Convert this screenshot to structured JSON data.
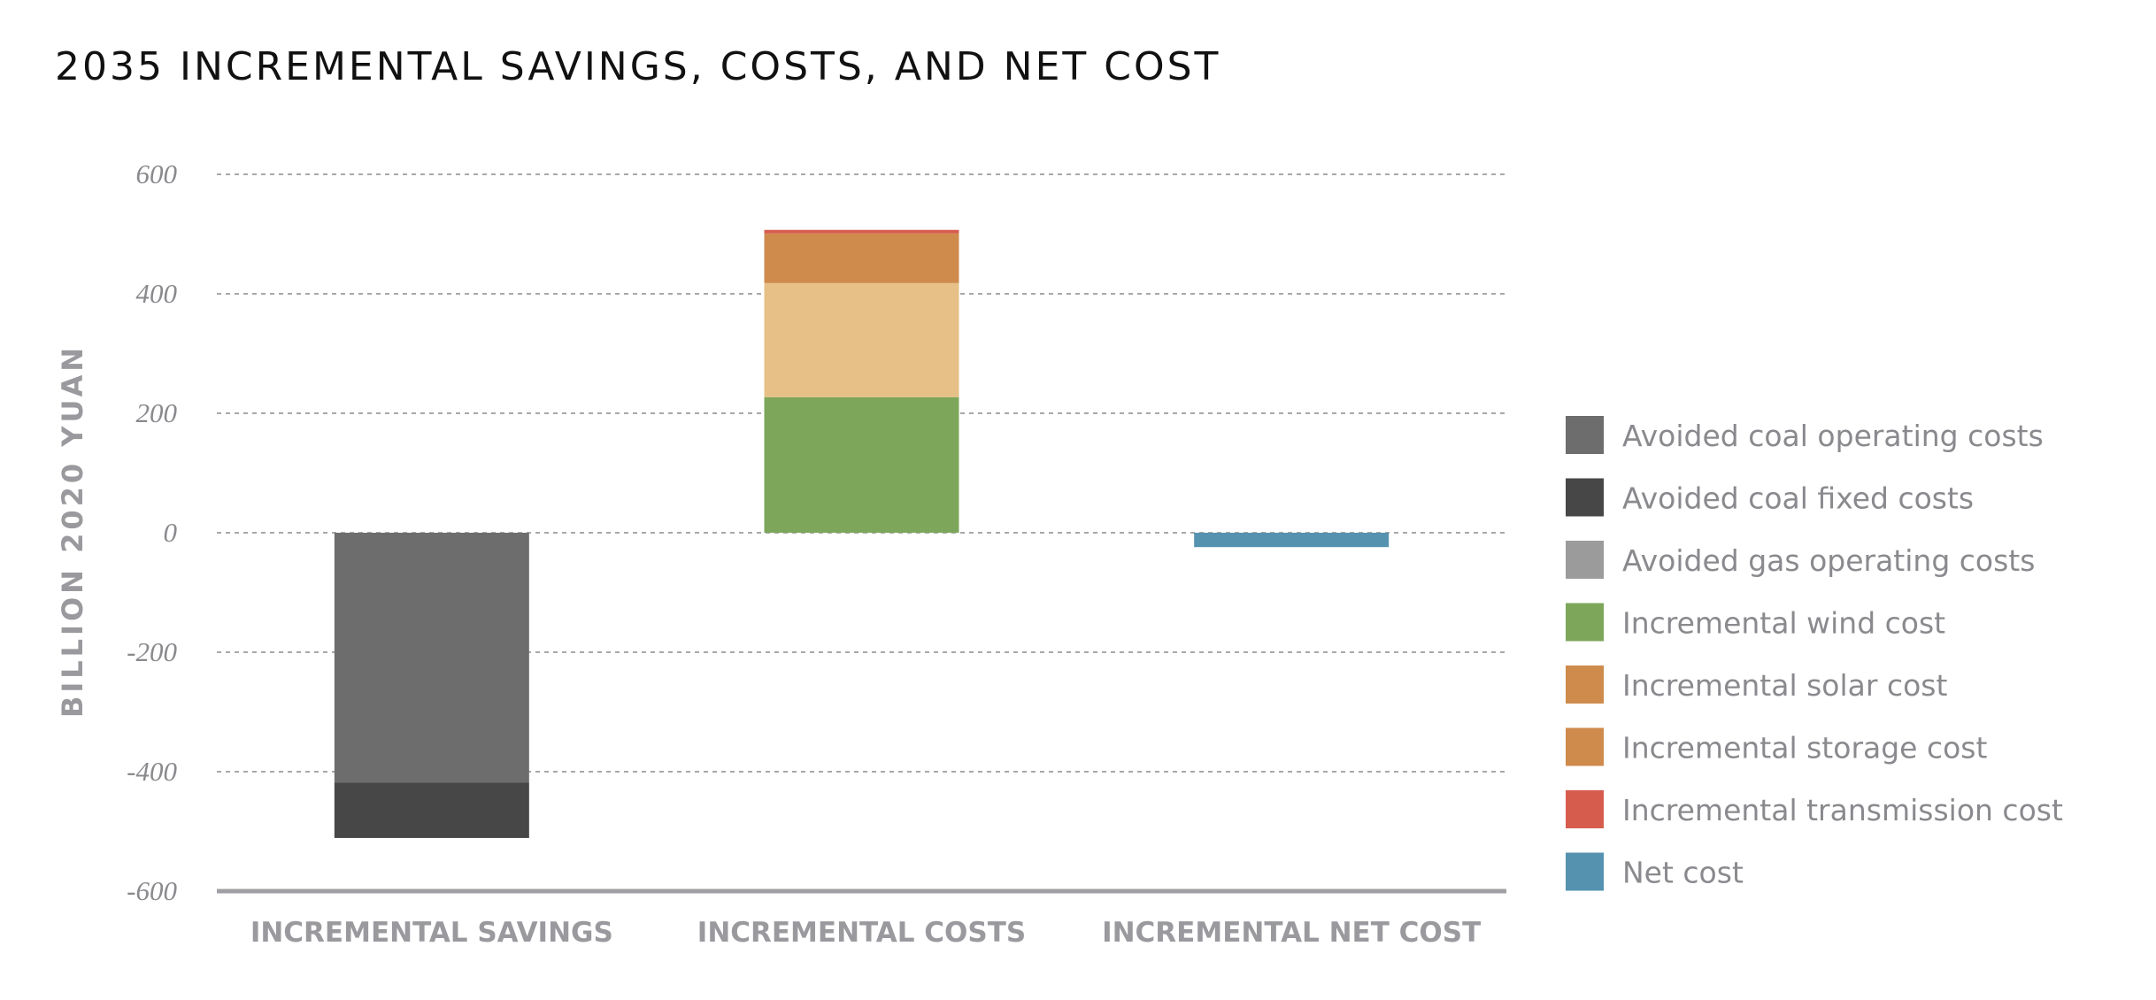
{
  "chart_data": {
    "type": "bar",
    "stacked": true,
    "title": "2035 INCREMENTAL SAVINGS, COSTS, AND NET COST",
    "xlabel": "",
    "ylabel": "BILLION 2020 YUAN",
    "ylim": [
      -600,
      600
    ],
    "yticks": [
      600,
      400,
      200,
      0,
      -200,
      -400,
      -600
    ],
    "grid": true,
    "legend_position": "right",
    "categories": [
      "INCREMENTAL SAVINGS",
      "INCREMENTAL COSTS",
      "INCREMENTAL NET COST"
    ],
    "series": [
      {
        "name": "Avoided coal operating costs",
        "color": "#6d6d6d",
        "legend_color": "#6d6d6d",
        "values": [
          -418,
          0,
          0
        ]
      },
      {
        "name": "Avoided coal fixed costs",
        "color": "#474747",
        "legend_color": "#474747",
        "values": [
          -93,
          0,
          0
        ]
      },
      {
        "name": "Avoided gas operating costs",
        "color": "#9b9b9b",
        "legend_color": "#9b9b9b",
        "values": [
          0,
          0,
          0
        ]
      },
      {
        "name": "Incremental wind cost",
        "color": "#7da65b",
        "legend_color": "#7da65b",
        "values": [
          0,
          227,
          0
        ]
      },
      {
        "name": "Incremental solar cost",
        "color": "#e6c087",
        "legend_color": "#ce8b4c",
        "values": [
          0,
          191,
          0
        ]
      },
      {
        "name": "Incremental storage cost",
        "color": "#ce8b4c",
        "legend_color": "#ce8b4c",
        "values": [
          0,
          83,
          0
        ]
      },
      {
        "name": "Incremental transmission cost",
        "color": "#d65d4e",
        "legend_color": "#d65d4e",
        "values": [
          0,
          6,
          0
        ]
      },
      {
        "name": "Net cost",
        "color": "#5592b0",
        "legend_color": "#5592b0",
        "values": [
          0,
          0,
          -24
        ]
      }
    ]
  }
}
